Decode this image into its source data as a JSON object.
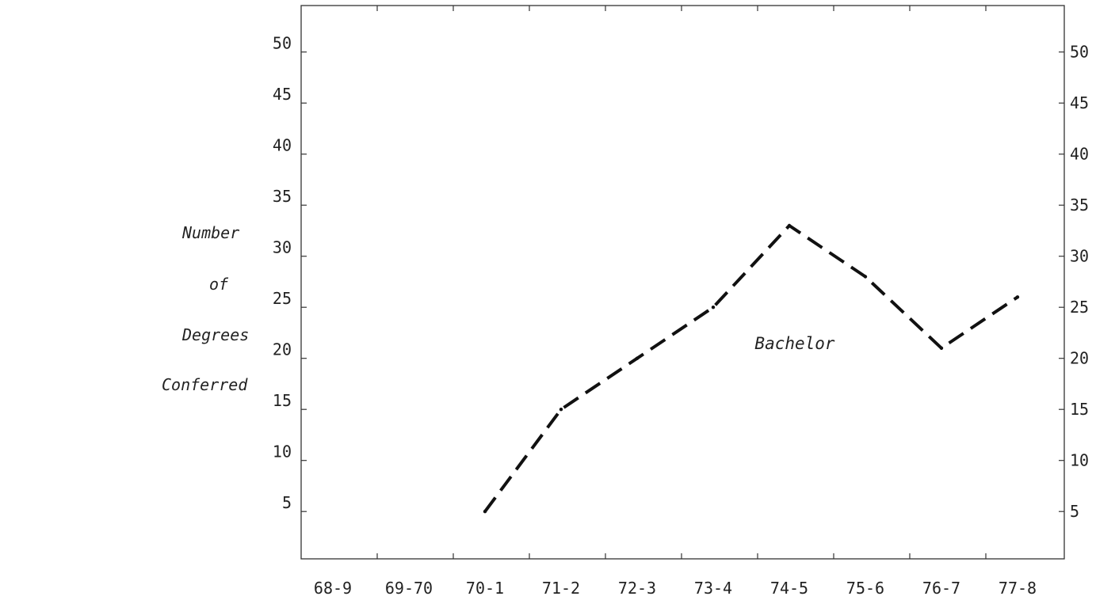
{
  "chart_data": {
    "type": "line",
    "categories": [
      "68-9",
      "69-70",
      "70-1",
      "71-2",
      "72-3",
      "73-4",
      "74-5",
      "75-6",
      "76-7",
      "77-8"
    ],
    "series": [
      {
        "name": "Bachelor",
        "values": [
          null,
          null,
          5,
          15,
          20,
          25,
          33,
          28,
          21,
          26
        ]
      }
    ],
    "ylabel_lines": [
      "Number",
      "of",
      "Degrees",
      "Conferred"
    ],
    "yticks": [
      5,
      10,
      15,
      20,
      25,
      30,
      35,
      40,
      45,
      50
    ],
    "ylim": [
      0,
      55
    ],
    "right_axis_labels": true,
    "grid": false,
    "line_style": "dashed",
    "colors": {
      "line": "#111111",
      "axis": "#333333",
      "text": "#222222"
    }
  }
}
